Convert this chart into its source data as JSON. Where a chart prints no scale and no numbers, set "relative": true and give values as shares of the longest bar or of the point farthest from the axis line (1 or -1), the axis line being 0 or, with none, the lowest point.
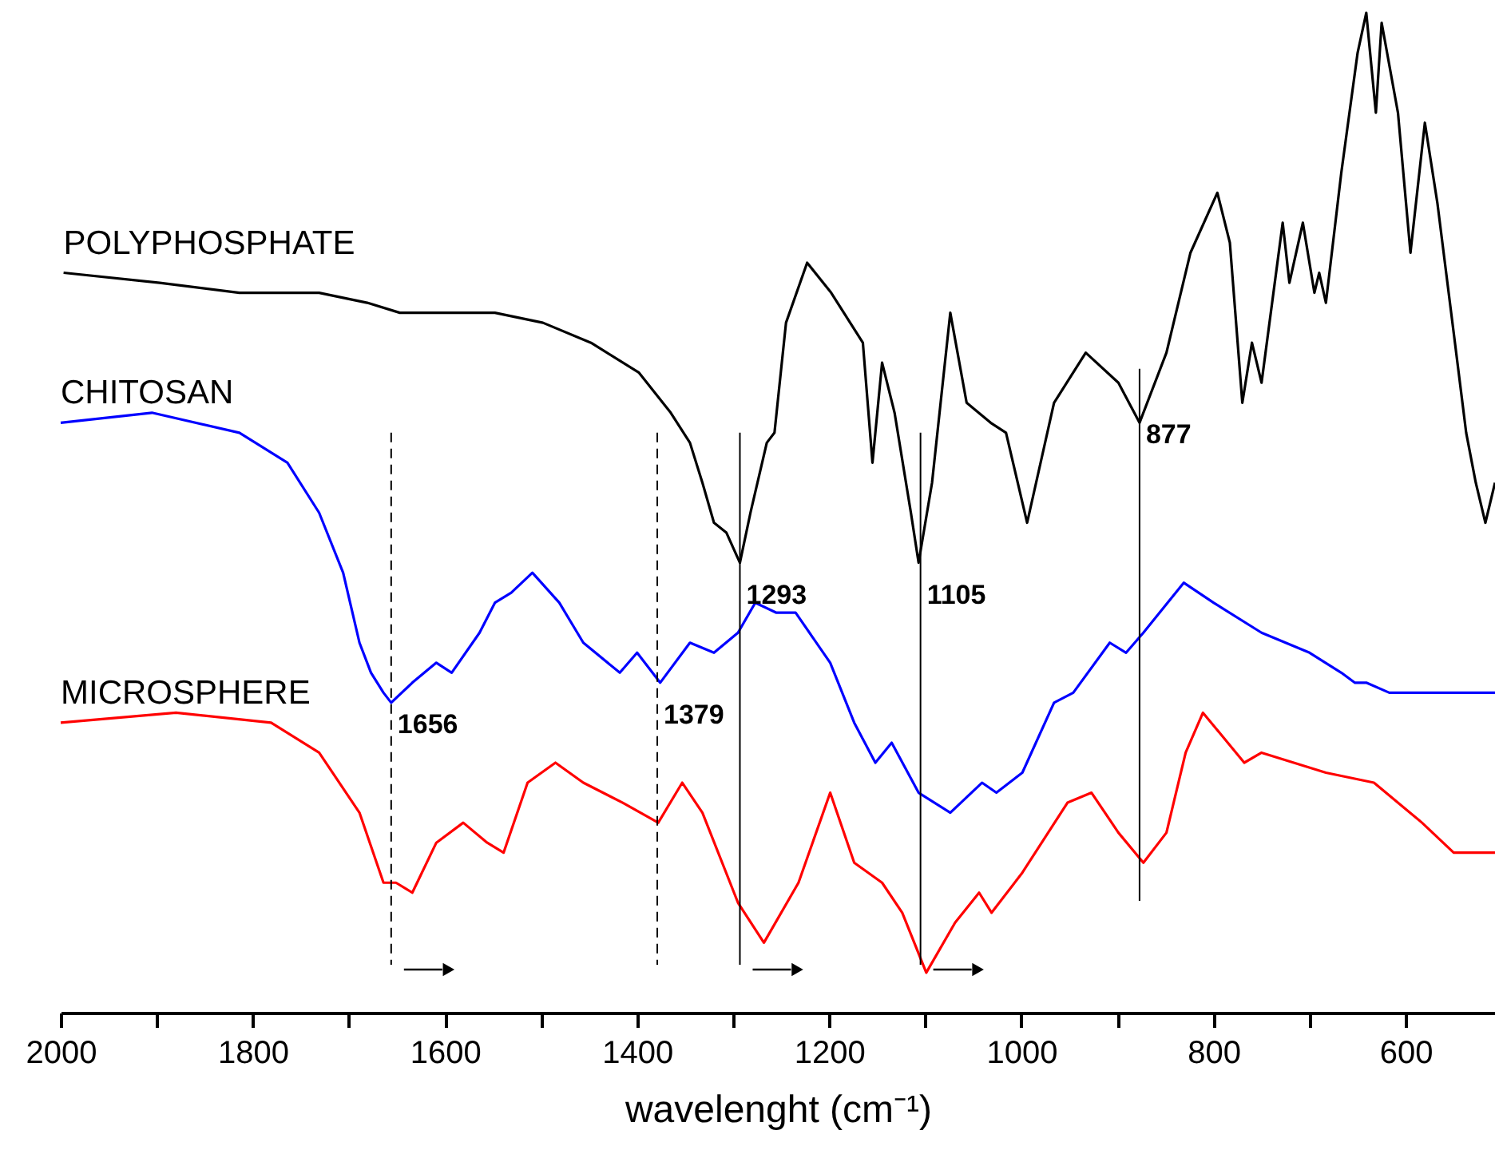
{
  "chart_data": {
    "type": "line",
    "relative": true,
    "xlabel": "wavelenght (cm⁻¹)",
    "xlim": [
      2000,
      507
    ],
    "xticks": [
      2000,
      {
        "value": 1900,
        "label": null
      },
      1800,
      {
        "value": 1700,
        "label": null
      },
      1600,
      {
        "value": 1500,
        "label": null
      },
      1400,
      {
        "value": 1300,
        "label": null
      },
      1200,
      {
        "value": 1100,
        "label": null
      },
      1000,
      {
        "value": 900,
        "label": null
      },
      800,
      {
        "value": 700,
        "label": null
      },
      600
    ],
    "grid": false,
    "series": [
      {
        "name": "POLYPHOSPHATE",
        "color": "#000000",
        "x": [
          1997,
          1897,
          1814,
          1731,
          1681,
          1647,
          1623,
          1589,
          1548,
          1498,
          1448,
          1398,
          1365,
          1345,
          1332,
          1320,
          1307,
          1293,
          1282,
          1265,
          1257,
          1245,
          1223,
          1198,
          1165,
          1155,
          1145,
          1132,
          1115,
          1107,
          1093,
          1074,
          1057,
          1032,
          1016,
          994,
          966,
          933,
          899,
          877,
          849,
          824,
          796,
          783,
          770,
          760,
          750,
          728,
          721,
          707,
          695,
          690,
          683,
          667,
          650,
          641,
          631,
          625,
          608,
          595,
          580,
          567,
          550,
          537,
          527,
          517,
          507
        ],
        "values": [
          0.74,
          0.73,
          0.72,
          0.72,
          0.71,
          0.7,
          0.7,
          0.7,
          0.7,
          0.69,
          0.67,
          0.64,
          0.6,
          0.57,
          0.53,
          0.49,
          0.48,
          0.45,
          0.5,
          0.57,
          0.58,
          0.69,
          0.75,
          0.72,
          0.67,
          0.55,
          0.65,
          0.6,
          0.5,
          0.45,
          0.53,
          0.7,
          0.61,
          0.59,
          0.58,
          0.49,
          0.61,
          0.66,
          0.63,
          0.59,
          0.66,
          0.76,
          0.82,
          0.77,
          0.61,
          0.67,
          0.63,
          0.79,
          0.73,
          0.79,
          0.72,
          0.74,
          0.71,
          0.84,
          0.96,
          1.0,
          0.9,
          0.99,
          0.9,
          0.76,
          0.89,
          0.81,
          0.68,
          0.58,
          0.53,
          0.49,
          0.53
        ]
      },
      {
        "name": "CHITOSAN",
        "color": "#0000ff",
        "x": [
          2000,
          1905,
          1814,
          1764,
          1731,
          1706,
          1689,
          1677,
          1664,
          1656,
          1634,
          1609,
          1593,
          1564,
          1548,
          1531,
          1509,
          1481,
          1456,
          1418,
          1400,
          1376,
          1345,
          1320,
          1295,
          1277,
          1255,
          1235,
          1199,
          1174,
          1152,
          1135,
          1107,
          1074,
          1041,
          1026,
          999,
          966,
          946,
          908,
          891,
          873,
          831,
          800,
          750,
          700,
          667,
          653,
          641,
          617,
          553,
          533,
          507
        ],
        "values": [
          0.59,
          0.6,
          0.58,
          0.55,
          0.5,
          0.44,
          0.37,
          0.34,
          0.32,
          0.31,
          0.33,
          0.35,
          0.34,
          0.38,
          0.41,
          0.42,
          0.44,
          0.41,
          0.37,
          0.34,
          0.36,
          0.33,
          0.37,
          0.36,
          0.38,
          0.41,
          0.4,
          0.4,
          0.35,
          0.29,
          0.25,
          0.27,
          0.22,
          0.2,
          0.23,
          0.22,
          0.24,
          0.31,
          0.32,
          0.37,
          0.36,
          0.38,
          0.43,
          0.41,
          0.38,
          0.36,
          0.34,
          0.33,
          0.33,
          0.32,
          0.32,
          0.32,
          0.32
        ]
      },
      {
        "name": "MICROSPHERE",
        "color": "#ff0000",
        "x": [
          2000,
          1880,
          1781,
          1731,
          1689,
          1664,
          1651,
          1634,
          1609,
          1581,
          1556,
          1539,
          1514,
          1485,
          1456,
          1415,
          1378,
          1353,
          1332,
          1295,
          1268,
          1232,
          1199,
          1174,
          1145,
          1124,
          1099,
          1069,
          1044,
          1031,
          999,
          952,
          927,
          899,
          873,
          849,
          829,
          811,
          768,
          750,
          683,
          633,
          583,
          550,
          507
        ],
        "values": [
          0.29,
          0.3,
          0.29,
          0.26,
          0.2,
          0.13,
          0.13,
          0.12,
          0.17,
          0.19,
          0.17,
          0.16,
          0.23,
          0.25,
          0.23,
          0.21,
          0.19,
          0.23,
          0.2,
          0.11,
          0.07,
          0.13,
          0.22,
          0.15,
          0.13,
          0.1,
          0.04,
          0.09,
          0.12,
          0.1,
          0.14,
          0.21,
          0.22,
          0.18,
          0.15,
          0.18,
          0.26,
          0.3,
          0.25,
          0.26,
          0.24,
          0.23,
          0.19,
          0.16,
          0.16
        ]
      }
    ],
    "ref_lines": [
      {
        "axis": "x",
        "value": 1656,
        "label": "1656",
        "line_style": "dashed",
        "color": "#000000"
      },
      {
        "axis": "x",
        "value": 1379,
        "label": "1379",
        "line_style": "dashed",
        "color": "#000000"
      },
      {
        "axis": "x",
        "value": 1293,
        "label": "1293",
        "line_style": "solid",
        "color": "#000000"
      },
      {
        "axis": "x",
        "value": 1105,
        "label": "1105",
        "line_style": "solid",
        "color": "#000000"
      },
      {
        "axis": "x",
        "value": 877,
        "label": "877",
        "line_style": "solid",
        "color": "#000000"
      }
    ]
  }
}
